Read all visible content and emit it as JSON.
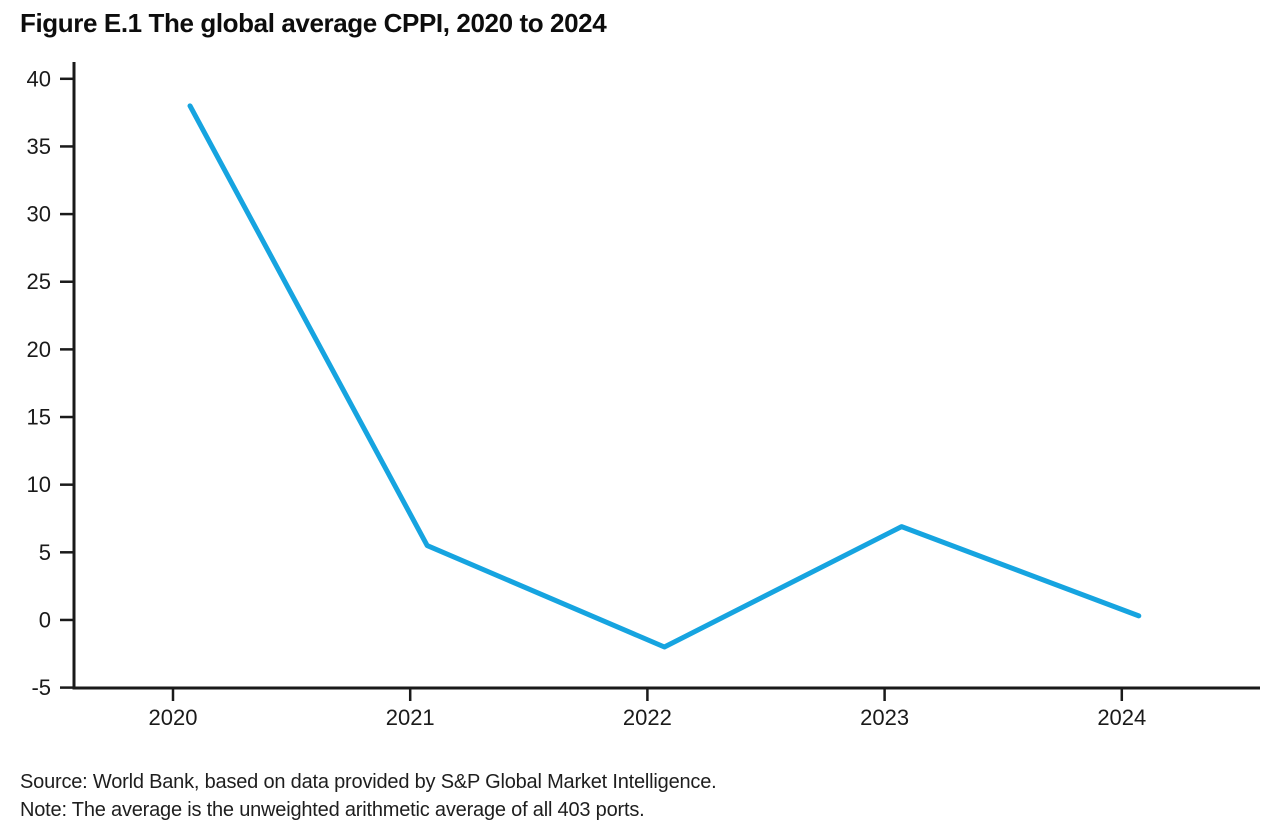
{
  "figure": {
    "title": "Figure E.1 The global average CPPI, 2020 to 2024",
    "source": "Source: World Bank, based on data provided by S&P Global Market Intelligence.",
    "note": "Note: The average is the unweighted arithmetic average of all 403 ports."
  },
  "colors": {
    "line": "#16A4E0",
    "axis": "#1a1a1a",
    "text": "#1a1a1a"
  },
  "chart_data": {
    "type": "line",
    "title": "Figure E.1 The global average CPPI, 2020 to 2024",
    "series_name": "Global average CPPI",
    "x": [
      2020,
      2021,
      2022,
      2023,
      2024
    ],
    "values": [
      38,
      5.5,
      -2,
      6.9,
      0.3
    ],
    "xlabel": "",
    "ylabel": "",
    "ylim": [
      -5,
      40
    ],
    "yticks": [
      -5,
      0,
      5,
      10,
      15,
      20,
      25,
      30,
      35,
      40
    ],
    "xticks": [
      2020,
      2021,
      2022,
      2023,
      2024
    ],
    "grid": false,
    "legend": false
  }
}
